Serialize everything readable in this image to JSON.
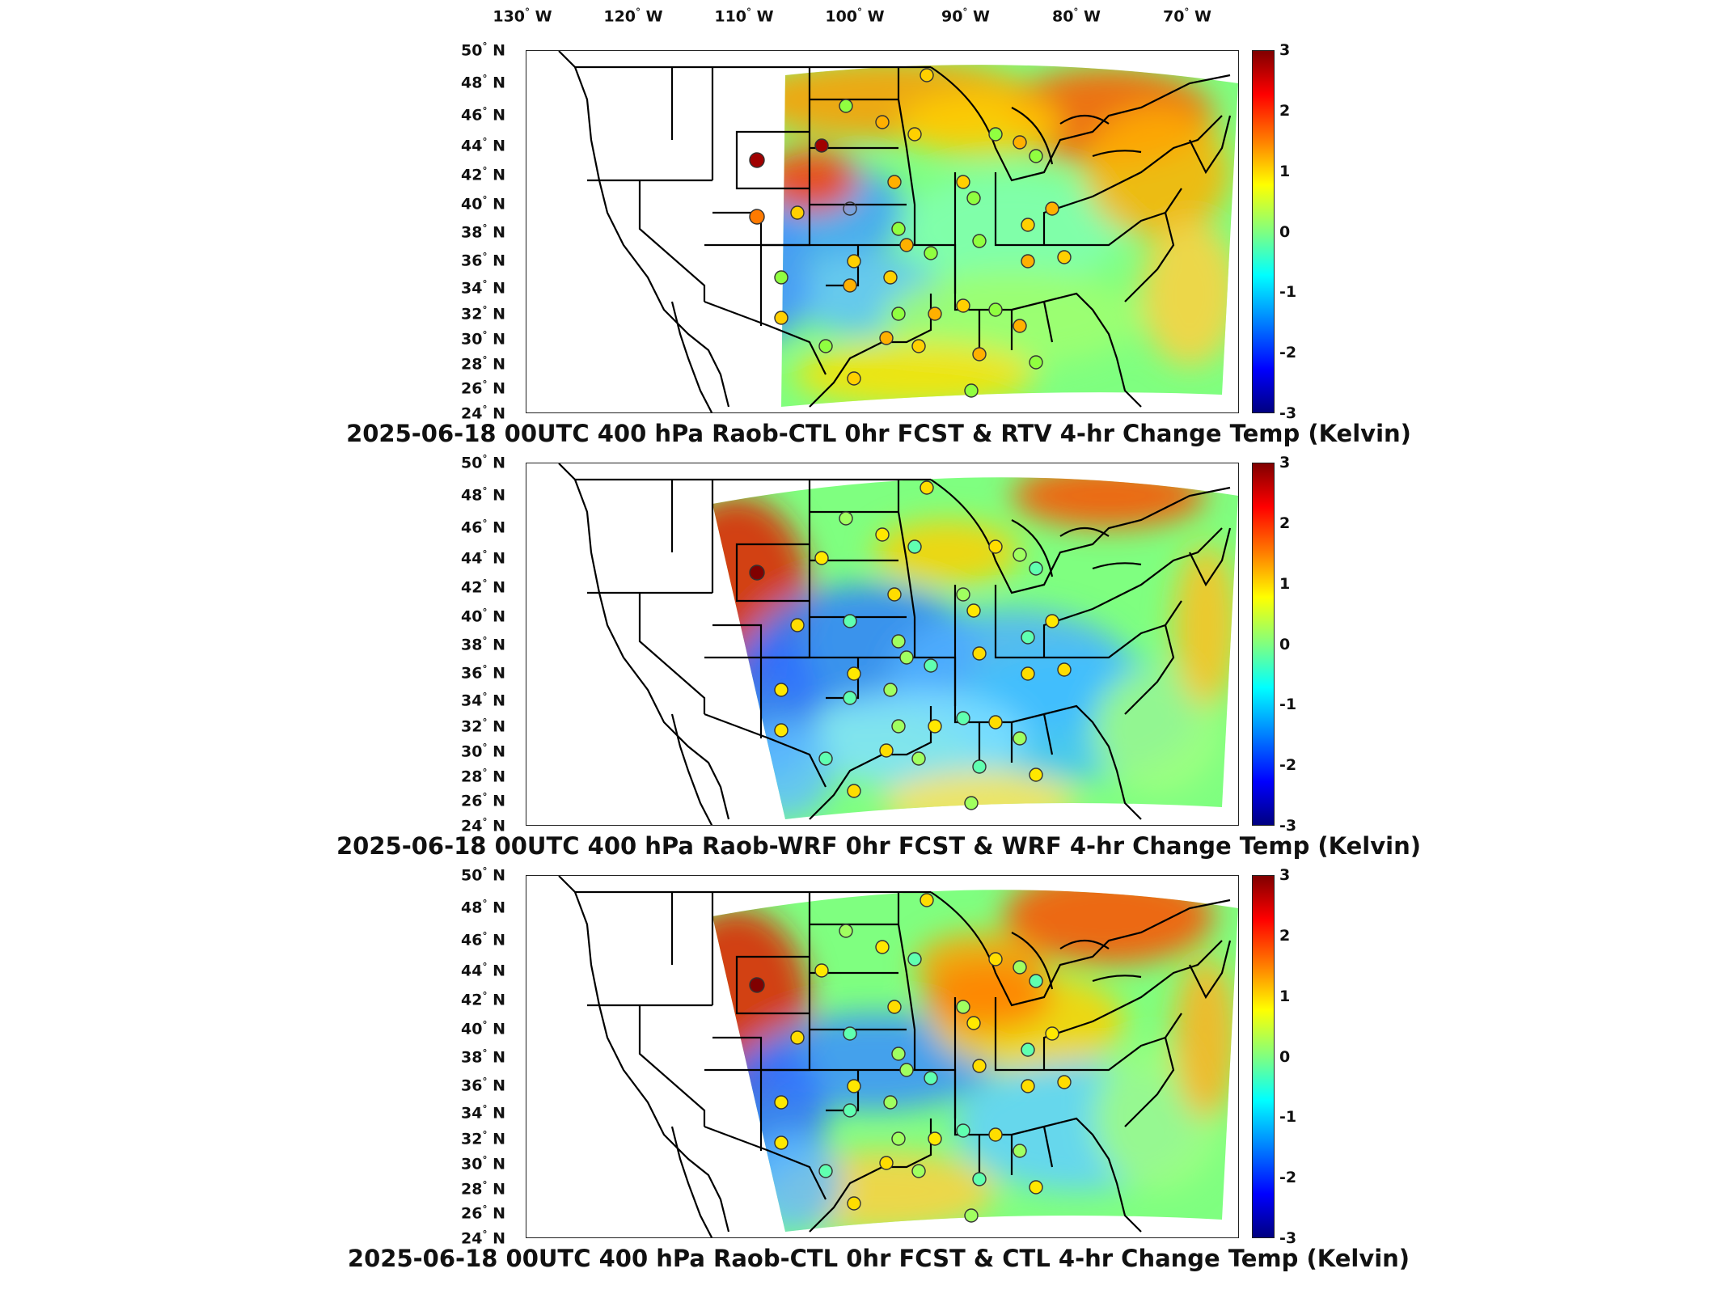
{
  "longitude_labels": [
    "130",
    "W",
    "120",
    "W",
    "110",
    "W",
    "100",
    "W",
    "90",
    "W",
    "80",
    "W",
    "70",
    "W"
  ],
  "lon_ticks": [
    {
      "deg": "130",
      "hem": "W"
    },
    {
      "deg": "120",
      "hem": "W"
    },
    {
      "deg": "110",
      "hem": "W"
    },
    {
      "deg": "100",
      "hem": "W"
    },
    {
      "deg": "90",
      "hem": "W"
    },
    {
      "deg": "80",
      "hem": "W"
    },
    {
      "deg": "70",
      "hem": "W"
    }
  ],
  "lat_ticks": [
    {
      "deg": "50",
      "hem": "N"
    },
    {
      "deg": "48",
      "hem": "N"
    },
    {
      "deg": "46",
      "hem": "N"
    },
    {
      "deg": "44",
      "hem": "N"
    },
    {
      "deg": "42",
      "hem": "N"
    },
    {
      "deg": "40",
      "hem": "N"
    },
    {
      "deg": "38",
      "hem": "N"
    },
    {
      "deg": "36",
      "hem": "N"
    },
    {
      "deg": "34",
      "hem": "N"
    },
    {
      "deg": "32",
      "hem": "N"
    },
    {
      "deg": "30",
      "hem": "N"
    },
    {
      "deg": "28",
      "hem": "N"
    },
    {
      "deg": "26",
      "hem": "N"
    },
    {
      "deg": "24",
      "hem": "N"
    }
  ],
  "degree_symbol": "°",
  "colorbar": {
    "ticks": [
      "3",
      "2",
      "1",
      "0",
      "-1",
      "-2",
      "-3"
    ],
    "range": [
      -3,
      3
    ],
    "colormap": "jet"
  },
  "panels": [
    {
      "title": "2025-06-18 00UTC 400 hPa Raob-CTL 0hr FCST & RTV 4-hr Change Temp (Kelvin)"
    },
    {
      "title": "2025-06-18 00UTC 400 hPa Raob-WRF 0hr FCST & WRF 4-hr Change Temp (Kelvin)"
    },
    {
      "title": "2025-06-18 00UTC 400 hPa Raob-CTL 0hr FCST & CTL 4-hr Change Temp (Kelvin)"
    }
  ],
  "colors": {
    "border": "#222222",
    "station_outline": "#333333"
  }
}
